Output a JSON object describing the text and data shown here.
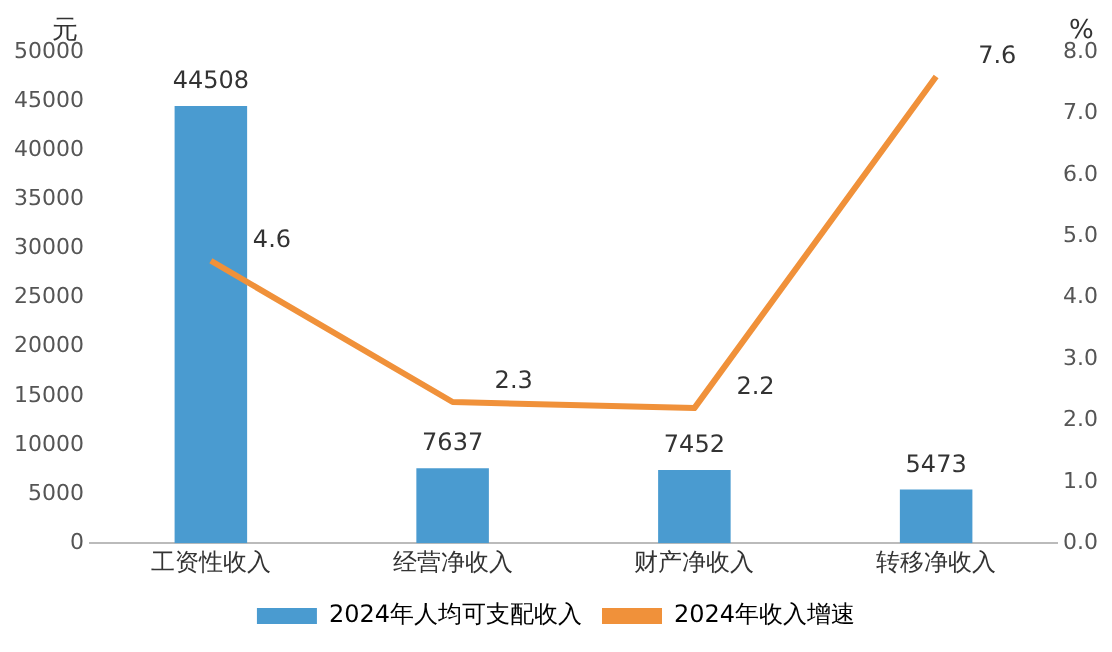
{
  "chart_data": {
    "type": "bar",
    "ylabel": "元",
    "y2label": "%",
    "categories": [
      "工资性收入",
      "经营净收入",
      "财产净收入",
      "转移净收入"
    ],
    "series": [
      {
        "name": "2024年人均可支配收入",
        "color": "#4a9bd0",
        "values": [
          44508,
          7637,
          7452,
          5473
        ]
      },
      {
        "name": "2024年收入增速",
        "type": "line",
        "axis": "y2",
        "color": "#f0913a",
        "values": [
          4.6,
          2.3,
          2.2,
          7.6
        ]
      }
    ],
    "ylim": [
      0,
      50000
    ],
    "yticks": [
      0,
      5000,
      10000,
      15000,
      20000,
      25000,
      30000,
      35000,
      40000,
      45000,
      50000
    ],
    "y2lim": [
      0,
      8
    ],
    "y2ticks": [
      {
        "value": 0,
        "label": "0.0"
      },
      {
        "value": 1,
        "label": "1.0"
      },
      {
        "value": 2,
        "label": "2.0"
      },
      {
        "value": 3,
        "label": "3.0"
      },
      {
        "value": 4,
        "label": "4.0"
      },
      {
        "value": 5,
        "label": "5.0"
      },
      {
        "value": 6,
        "label": "6.0"
      },
      {
        "value": 7,
        "label": "7.0"
      },
      {
        "value": 8,
        "label": "8.0"
      }
    ],
    "data_labels": true,
    "legend": "bottom",
    "grid": false,
    "marker": "none"
  }
}
